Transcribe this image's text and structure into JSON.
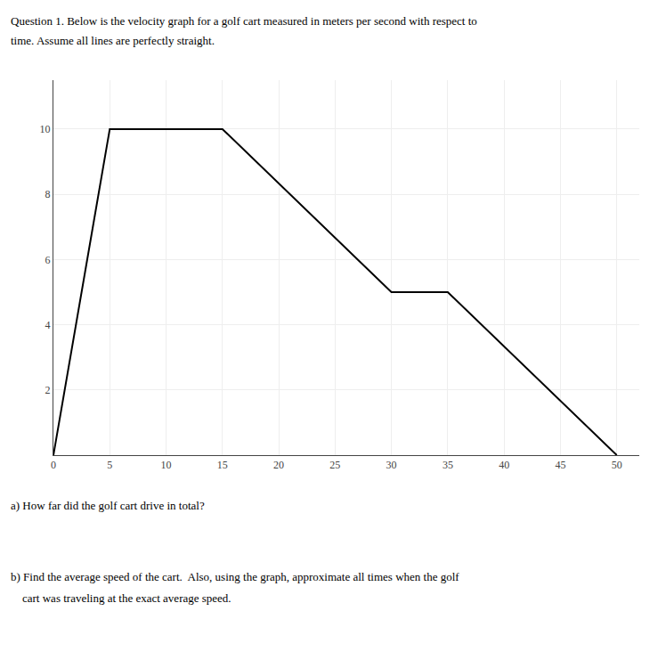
{
  "chart_data": {
    "type": "line",
    "x": [
      0,
      5,
      15,
      30,
      35,
      50
    ],
    "values": [
      0,
      10,
      10,
      5,
      5,
      0
    ],
    "color": "#000000",
    "xlim": [
      0,
      52
    ],
    "ylim": [
      0,
      11.5
    ],
    "xticks": [
      0,
      5,
      10,
      15,
      20,
      25,
      30,
      35,
      40,
      45,
      50
    ],
    "yticks": [
      2,
      4,
      6,
      8,
      10
    ],
    "grid": true,
    "annotations": [
      "Question 1. Below is the velocity graph for a golf cart measured in meters per second with respect to",
      "time. Assume all lines are perfectly straight.",
      "a) How far did the golf cart drive in total?",
      "b) Find the average speed of the cart.  Also, using the graph, approximate all times when the golf",
      "    cart was traveling at the exact average speed."
    ]
  }
}
